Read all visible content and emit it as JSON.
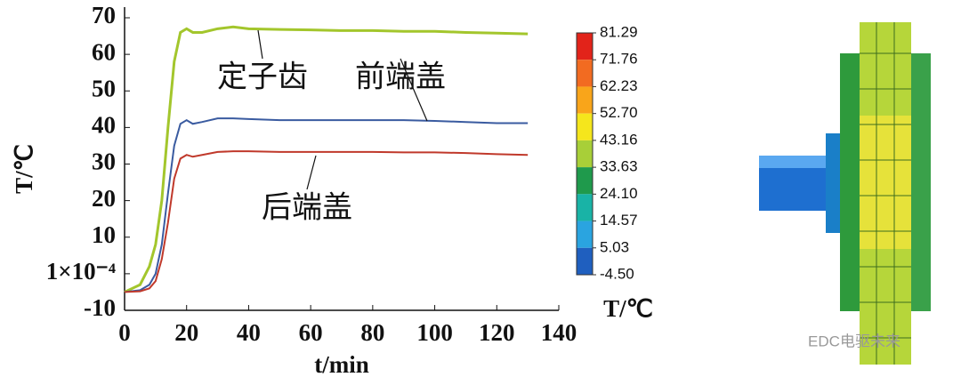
{
  "chart_data": {
    "type": "line",
    "x_label": "t/min",
    "y_label": "T/℃",
    "xlim": [
      0,
      140
    ],
    "xticks": [
      0,
      20,
      40,
      60,
      80,
      100,
      120,
      140
    ],
    "ylim": [
      -10,
      70
    ],
    "yticks": [
      -10,
      {
        "value": 0.0001,
        "label": "1×10⁻⁴"
      },
      10,
      20,
      30,
      40,
      50,
      60,
      70
    ],
    "x": [
      0,
      5,
      8,
      10,
      12,
      14,
      16,
      18,
      20,
      22,
      25,
      30,
      35,
      40,
      50,
      60,
      70,
      80,
      90,
      100,
      110,
      120,
      130
    ],
    "series": [
      {
        "name": "定子齿",
        "color": "#a3c62c",
        "values": [
          -5,
          -3,
          2,
          8,
          20,
          40,
          58,
          66,
          67,
          66,
          66,
          67,
          67.5,
          67,
          66.8,
          66.7,
          66.5,
          66.5,
          66.3,
          66.3,
          66,
          65.8,
          65.6
        ]
      },
      {
        "name": "前端盖",
        "color": "#3a5ba0",
        "values": [
          -5,
          -4.5,
          -3,
          0,
          8,
          22,
          35,
          41,
          42,
          41,
          41.5,
          42.5,
          42.5,
          42.3,
          42,
          42,
          42,
          42,
          42,
          41.8,
          41.5,
          41.2,
          41.2
        ]
      },
      {
        "name": "后端盖",
        "color": "#c0392b",
        "values": [
          -5,
          -4.8,
          -4,
          -2,
          4,
          14,
          26,
          31.5,
          32.5,
          32,
          32.5,
          33.3,
          33.5,
          33.5,
          33.3,
          33.3,
          33.3,
          33.3,
          33.2,
          33.2,
          33,
          32.7,
          32.5
        ]
      }
    ],
    "colorbar": {
      "label": "T/℃",
      "ticks": [
        {
          "value": 81.29,
          "label": "81.29"
        },
        {
          "value": 71.76,
          "label": "71.76"
        },
        {
          "value": 62.23,
          "label": "62.23"
        },
        {
          "value": 52.7,
          "label": "52.70"
        },
        {
          "value": 43.16,
          "label": "43.16"
        },
        {
          "value": 33.63,
          "label": "33.63"
        },
        {
          "value": 24.1,
          "label": "24.10"
        },
        {
          "value": 14.57,
          "label": "14.57"
        },
        {
          "value": 5.03,
          "label": "5.03"
        },
        {
          "value": -4.5,
          "label": "-4.50"
        }
      ],
      "colors": [
        "#e2231a",
        "#f26b21",
        "#f9a51a",
        "#f5e61c",
        "#a8cf38",
        "#1f9a4c",
        "#19b3a6",
        "#2aa4e0",
        "#1f5fbf"
      ]
    },
    "watermark": "EDC电驱未来"
  }
}
